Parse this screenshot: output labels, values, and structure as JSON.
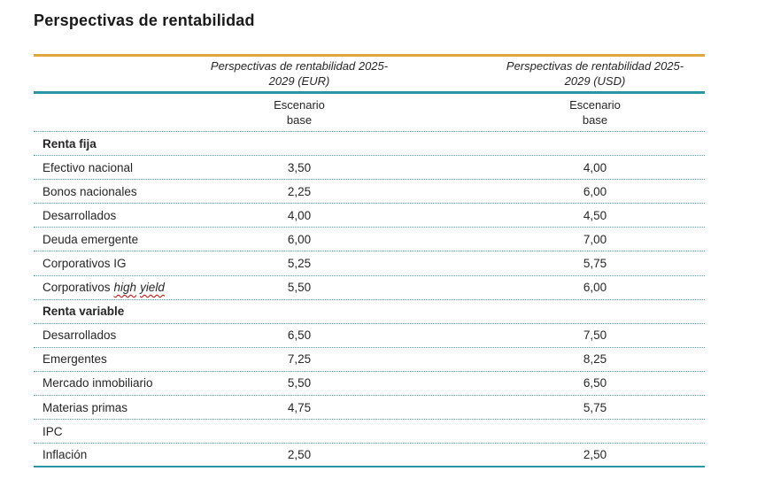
{
  "page": {
    "title": "Perspectivas de rentabilidad"
  },
  "colors": {
    "top_rule": "#DFA63B",
    "header_rule": "#2C95A4",
    "row_separator_dotted": "#4FA5B0",
    "text": "#262626"
  },
  "table": {
    "headers": {
      "eur": {
        "line1": "Perspectivas de rentabilidad 2025-",
        "line2": "2029 (EUR)"
      },
      "usd": {
        "line1": "Perspectivas de rentabilidad 2025-",
        "line2": "2029 (USD)"
      },
      "scenario_eur": {
        "line1": "Escenario",
        "line2": "base"
      },
      "scenario_usd": {
        "line1": "Escenario",
        "line2": "base"
      }
    },
    "rows": [
      {
        "type": "section",
        "label": "Renta fija",
        "eur": "",
        "usd": ""
      },
      {
        "type": "data",
        "label": "Efectivo nacional",
        "eur": "3,50",
        "usd": "4,00"
      },
      {
        "type": "data",
        "label": "Bonos nacionales",
        "eur": "2,25",
        "usd": "6,00"
      },
      {
        "type": "data",
        "label": "Desarrollados",
        "eur": "4,00",
        "usd": "4,50"
      },
      {
        "type": "data",
        "label": "Deuda emergente",
        "eur": "6,00",
        "usd": "7,00"
      },
      {
        "type": "data",
        "label": "Corporativos IG",
        "eur": "5,25",
        "usd": "5,75"
      },
      {
        "type": "data",
        "label": "Corporativos",
        "label_italic_word1": "high",
        "label_italic_word2": "yield",
        "eur": "5,50",
        "usd": "6,00"
      },
      {
        "type": "section",
        "label": "Renta variable",
        "eur": "",
        "usd": ""
      },
      {
        "type": "data",
        "label": "Desarrollados",
        "eur": "6,50",
        "usd": "7,50"
      },
      {
        "type": "data",
        "label": "Emergentes",
        "eur": "7,25",
        "usd": "8,25"
      },
      {
        "type": "data",
        "label": "Mercado inmobiliario",
        "eur": "5,50",
        "usd": "6,50"
      },
      {
        "type": "data",
        "label": "Materias primas",
        "eur": "4,75",
        "usd": "5,75"
      },
      {
        "type": "data",
        "label": "IPC",
        "eur": "",
        "usd": ""
      },
      {
        "type": "data",
        "label": "Inflación",
        "eur": "2,50",
        "usd": "2,50"
      }
    ]
  },
  "chart_data": {
    "type": "table",
    "title": "Perspectivas de rentabilidad",
    "categories": [
      "Efectivo nacional",
      "Bonos nacionales",
      "Desarrollados (renta fija)",
      "Deuda emergente",
      "Corporativos IG",
      "Corporativos high yield",
      "Desarrollados (renta variable)",
      "Emergentes",
      "Mercado inmobiliario",
      "Materias primas",
      "Inflación"
    ],
    "series": [
      {
        "name": "Perspectivas de rentabilidad 2025-2029 (EUR) — Escenario base",
        "values": [
          3.5,
          2.25,
          4.0,
          6.0,
          5.25,
          5.5,
          6.5,
          7.25,
          5.5,
          4.75,
          2.5
        ]
      },
      {
        "name": "Perspectivas de rentabilidad 2025-2029 (USD) — Escenario base",
        "values": [
          4.0,
          6.0,
          4.5,
          7.0,
          5.75,
          6.0,
          7.5,
          8.25,
          6.5,
          5.75,
          2.5
        ]
      }
    ],
    "groups": [
      "Renta fija",
      "Renta variable",
      "IPC"
    ]
  }
}
